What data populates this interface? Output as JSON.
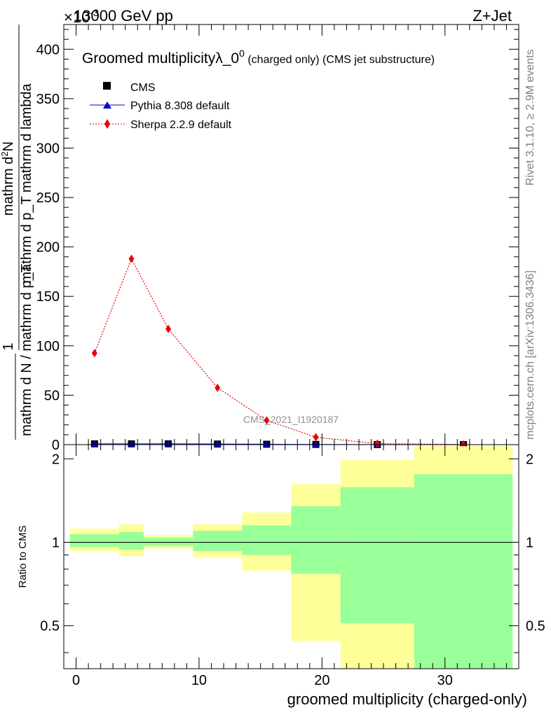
{
  "header": {
    "energy_label": "13000 GeV pp",
    "process_label": "Z+Jet",
    "exponent_label": "×10",
    "exponent_value": "-3"
  },
  "sidebar": {
    "rivet_label": "Rivet 3.1.10, ≥ 2.9M events",
    "mcplots_label": "mcplots.cern.ch [arXiv:1306.3436]"
  },
  "chart_data": [
    {
      "type": "scatter",
      "title": "Groomed multiplicityλ_0⁰ (charged only) (CMS jet substructure)",
      "title_main": "Groomed multiplicityλ_0",
      "title_sup": "0",
      "title_tail": " (charged only) (CMS jet substructure)",
      "analysis_label": "CMS_2021_I1920187",
      "ylabel_numerator": "mathrm d²N",
      "ylabel_numerator_prefix": "mathrm d",
      "ylabel_numerator_sup": "2",
      "ylabel_numerator_suffix": "N",
      "ylabel_denominator": "mathrm d p_T mathrm d lambda",
      "ylabel_prefactor_num": "1",
      "ylabel_prefactor_den": "mathrm d N / mathrm d p_T",
      "xlim": [
        -1,
        36
      ],
      "ylim": [
        0,
        425
      ],
      "y_scale_factor": "1e-3",
      "yticks": [
        0,
        50,
        100,
        150,
        200,
        250,
        300,
        350,
        400
      ],
      "legend_position": "top-left",
      "series": [
        {
          "name": "CMS",
          "marker": "square",
          "color": "#000000",
          "x": [
            1.5,
            4.5,
            7.5,
            11.5,
            15.5,
            19.5,
            24.5,
            31.5
          ],
          "y": [
            0.8,
            0.8,
            0.8,
            0.6,
            0.4,
            0.2,
            0.05,
            0.01
          ]
        },
        {
          "name": "Pythia 8.308 default",
          "marker": "triangle",
          "color": "#0000cc",
          "x": [
            1.5,
            4.5,
            7.5,
            11.5,
            15.5,
            19.5,
            24.5,
            31.5
          ],
          "y": [
            0.8,
            0.8,
            0.8,
            0.6,
            0.4,
            0.2,
            0.05,
            0.01
          ]
        },
        {
          "name": "Sherpa 2.2.9 default",
          "marker": "diamond",
          "color": "#ee0000",
          "x": [
            1.5,
            4.5,
            7.5,
            11.5,
            15.5,
            19.5,
            24.5,
            31.5
          ],
          "y": [
            92.5,
            188,
            117,
            57.5,
            24.5,
            7.5,
            1.0,
            0.2
          ]
        }
      ]
    },
    {
      "type": "area",
      "ylabel": "Ratio to CMS",
      "xlabel": "groomed multiplicity (charged-only)",
      "xlim": [
        -1,
        36
      ],
      "ylim": [
        0.35,
        2.25
      ],
      "xticks": [
        0,
        10,
        20,
        30
      ],
      "yticks": [
        0.5,
        1,
        2
      ],
      "reference_line": 1,
      "colors": {
        "outer_band": "#ffff99",
        "inner_band": "#99ff99",
        "line": "#000000"
      },
      "bins": [
        {
          "lo": -0.5,
          "hi": 3.5,
          "outer": [
            0.93,
            1.12
          ],
          "inner": [
            0.96,
            1.07
          ]
        },
        {
          "lo": 3.5,
          "hi": 5.5,
          "outer": [
            0.89,
            1.16
          ],
          "inner": [
            0.94,
            1.09
          ]
        },
        {
          "lo": 5.5,
          "hi": 9.5,
          "outer": [
            0.95,
            1.06
          ],
          "inner": [
            0.97,
            1.04
          ]
        },
        {
          "lo": 9.5,
          "hi": 13.5,
          "outer": [
            0.88,
            1.16
          ],
          "inner": [
            0.93,
            1.1
          ]
        },
        {
          "lo": 13.5,
          "hi": 17.5,
          "outer": [
            0.79,
            1.28
          ],
          "inner": [
            0.9,
            1.15
          ]
        },
        {
          "lo": 17.5,
          "hi": 21.5,
          "outer": [
            0.44,
            1.62
          ],
          "inner": [
            0.77,
            1.35
          ]
        },
        {
          "lo": 21.5,
          "hi": 27.5,
          "outer": [
            0.3,
            1.98
          ],
          "inner": [
            0.51,
            1.58
          ]
        },
        {
          "lo": 27.5,
          "hi": 35.5,
          "outer": [
            0.3,
            2.22
          ],
          "inner": [
            0.3,
            1.76
          ]
        }
      ]
    }
  ]
}
